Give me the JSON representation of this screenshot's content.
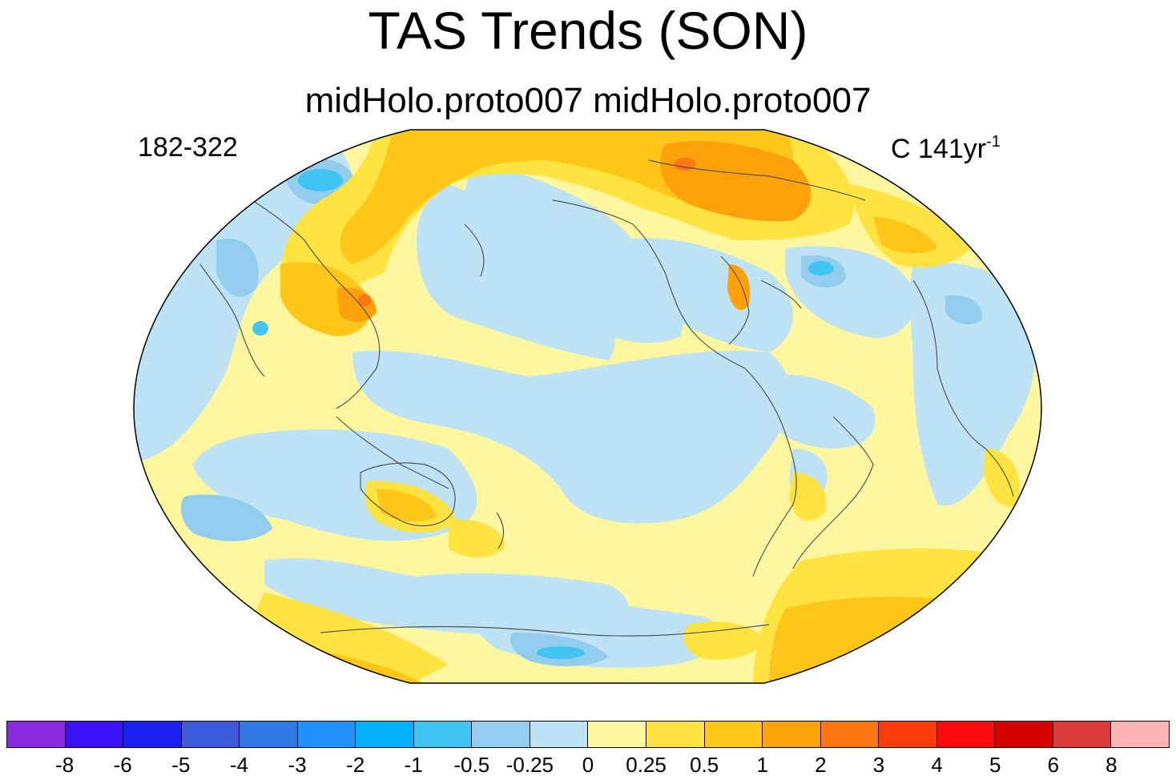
{
  "title": "TAS Trends (SON)",
  "subtitle": "midHolo.proto007  midHolo.proto007",
  "left_label": "182-322",
  "right_label": {
    "text": "C 141yr",
    "superscript": "-1"
  },
  "colorbar": {
    "colors": [
      "#8a2be2",
      "#3a10f5",
      "#1a20f0",
      "#3b5bdb",
      "#2f78e8",
      "#1e90ff",
      "#00b2ff",
      "#42c4f5",
      "#93cdee",
      "#bde3f5",
      "#fff7a0",
      "#ffe340",
      "#ffc61a",
      "#ffa10a",
      "#ff7710",
      "#ff3a0a",
      "#ff0a0a",
      "#d60000",
      "#dc3b3b",
      "#ffb4b4"
    ],
    "tick_labels": [
      "-8",
      "-6",
      "-5",
      "-4",
      "-3",
      "-2",
      "-1",
      "-0.5",
      "-0.25",
      "0",
      "0.25",
      "0.5",
      "1",
      "2",
      "3",
      "4",
      "5",
      "6",
      "8"
    ]
  }
}
